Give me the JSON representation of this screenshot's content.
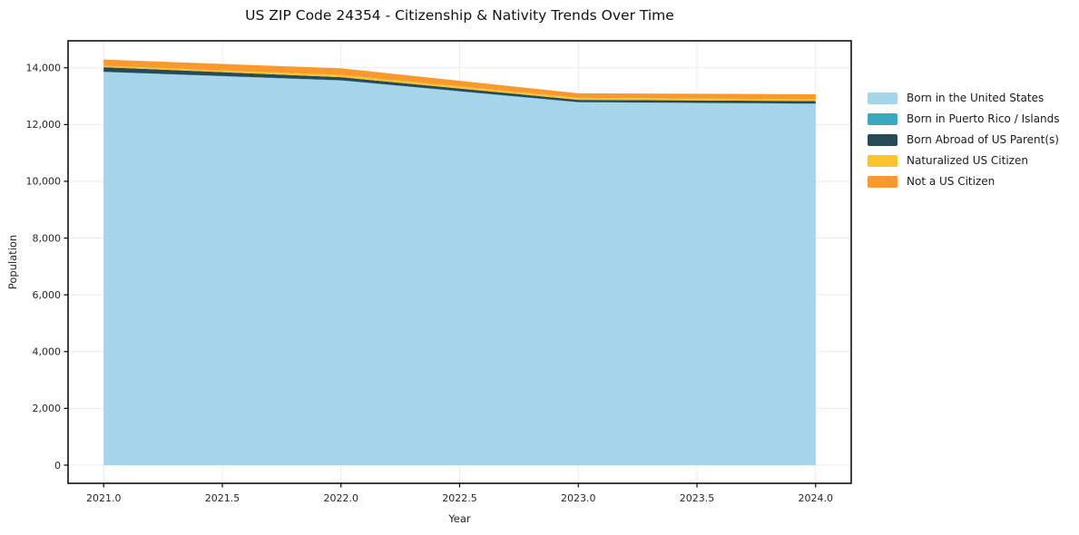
{
  "chart_data": {
    "type": "area",
    "stacked": true,
    "title": "US ZIP Code 24354 - Citizenship & Nativity Trends Over Time",
    "xlabel": "Year",
    "ylabel": "Population",
    "x": [
      2021,
      2022,
      2023,
      2024
    ],
    "series": [
      {
        "name": "Born in the United States",
        "color": "#a6d4ea",
        "values": [
          13850,
          13550,
          12780,
          12730
        ]
      },
      {
        "name": "Born in Puerto Rico / Islands",
        "color": "#3aa8bf",
        "values": [
          10,
          10,
          10,
          10
        ]
      },
      {
        "name": "Born Abroad of US Parent(s)",
        "color": "#264a58",
        "values": [
          160,
          110,
          80,
          90
        ]
      },
      {
        "name": "Naturalized US Citizen",
        "color": "#fcc32e",
        "values": [
          50,
          80,
          70,
          60
        ]
      },
      {
        "name": "Not a US Citizen",
        "color": "#f7992c",
        "values": [
          220,
          230,
          160,
          180
        ]
      }
    ],
    "xticks": {
      "values": [
        2021.0,
        2021.5,
        2022.0,
        2022.5,
        2023.0,
        2023.5,
        2024.0
      ],
      "labels": [
        "2021.0",
        "2021.5",
        "2022.0",
        "2022.5",
        "2023.0",
        "2023.5",
        "2024.0"
      ]
    },
    "yticks": {
      "values": [
        0,
        2000,
        4000,
        6000,
        8000,
        10000,
        12000,
        14000
      ],
      "labels": [
        "0",
        "2,000",
        "4,000",
        "6,000",
        "8,000",
        "10,000",
        "12,000",
        "14,000"
      ]
    },
    "xlim": [
      2020.85,
      2024.15
    ],
    "ylim": [
      -640,
      14950
    ],
    "grid": true,
    "legend_position": "right",
    "colors": {
      "grid": "#ececec",
      "spine": "#000000",
      "tick": "#000000",
      "tick_label": "#262626",
      "title": "#111111",
      "background": "#ffffff"
    }
  }
}
